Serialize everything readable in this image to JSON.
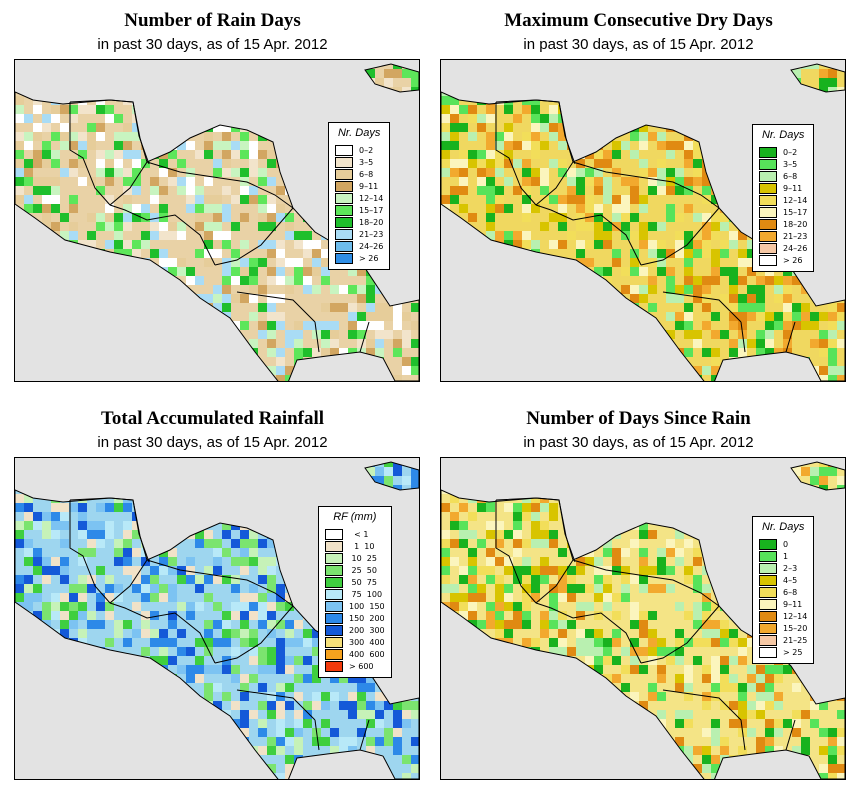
{
  "panels": [
    {
      "title": "Number of Rain Days",
      "subtitle": "in past 30 days, as of  15 Apr. 2012",
      "legend": {
        "title": "Nr. Days",
        "items": [
          {
            "label": "0–2",
            "color": "#ffffff"
          },
          {
            "label": "3–5",
            "color": "#f2e4cb"
          },
          {
            "label": "6–8",
            "color": "#e6cd9a"
          },
          {
            "label": "9–11",
            "color": "#d2a661"
          },
          {
            "label": "12–14",
            "color": "#c8f4c0"
          },
          {
            "label": "15–17",
            "color": "#5de65a"
          },
          {
            "label": "18–20",
            "color": "#1fbf2c"
          },
          {
            "label": "21–23",
            "color": "#a9dcf5"
          },
          {
            "label": "24–26",
            "color": "#6dbcec"
          },
          {
            "label": "> 26",
            "color": "#2f8ee6"
          }
        ]
      }
    },
    {
      "title": "Maximum Consecutive Dry Days",
      "subtitle": "in past 30 days, as of  15 Apr. 2012",
      "legend": {
        "title": "Nr. Days",
        "items": [
          {
            "label": "0–2",
            "color": "#18b21e"
          },
          {
            "label": "3–5",
            "color": "#57e35a"
          },
          {
            "label": "6–8",
            "color": "#b9f0b0"
          },
          {
            "label": "9–11",
            "color": "#d8c400"
          },
          {
            "label": "12–14",
            "color": "#f2de5a"
          },
          {
            "label": "15–17",
            "color": "#fbf5bd"
          },
          {
            "label": "18–20",
            "color": "#e08a12"
          },
          {
            "label": "21–23",
            "color": "#f2a92e"
          },
          {
            "label": "24–26",
            "color": "#f6c8a5"
          },
          {
            "label": "> 26",
            "color": "#ffffff"
          }
        ]
      }
    },
    {
      "title": "Total Accumulated Rainfall",
      "subtitle": "in past 30 days, as of  15 Apr. 2012",
      "legend": {
        "title": "RF (mm)",
        "items": [
          {
            "label": "  < 1",
            "color": "#ffffff"
          },
          {
            "label": "  1  10",
            "color": "#f1e2c8"
          },
          {
            "label": " 10  25",
            "color": "#c6f2b8"
          },
          {
            "label": " 25  50",
            "color": "#7be46f"
          },
          {
            "label": " 50  75",
            "color": "#3fcf3f"
          },
          {
            "label": " 75  100",
            "color": "#b8e9f8"
          },
          {
            "label": "100  150",
            "color": "#7cc3f2"
          },
          {
            "label": "150  200",
            "color": "#2d89e8"
          },
          {
            "label": "200  300",
            "color": "#1459d8"
          },
          {
            "label": "300  400",
            "color": "#f6e07a"
          },
          {
            "label": "400  600",
            "color": "#f6a21e"
          },
          {
            "label": "> 600",
            "color": "#f23a0c"
          }
        ]
      }
    },
    {
      "title": "Number of Days Since Rain",
      "subtitle": "in past 30 days, as of  15 Apr. 2012",
      "legend": {
        "title": "Nr. Days",
        "items": [
          {
            "label": "0",
            "color": "#18b21e"
          },
          {
            "label": "1",
            "color": "#57e35a"
          },
          {
            "label": "2–3",
            "color": "#b9f0b0"
          },
          {
            "label": "4–5",
            "color": "#d8c400"
          },
          {
            "label": "6–8",
            "color": "#f2de5a"
          },
          {
            "label": "9–11",
            "color": "#fbf5bd"
          },
          {
            "label": "12–14",
            "color": "#e08a12"
          },
          {
            "label": "15–20",
            "color": "#f2a92e"
          },
          {
            "label": "21–25",
            "color": "#f6c8a5"
          },
          {
            "label": "> 25",
            "color": "#ffffff"
          }
        ]
      }
    }
  ]
}
